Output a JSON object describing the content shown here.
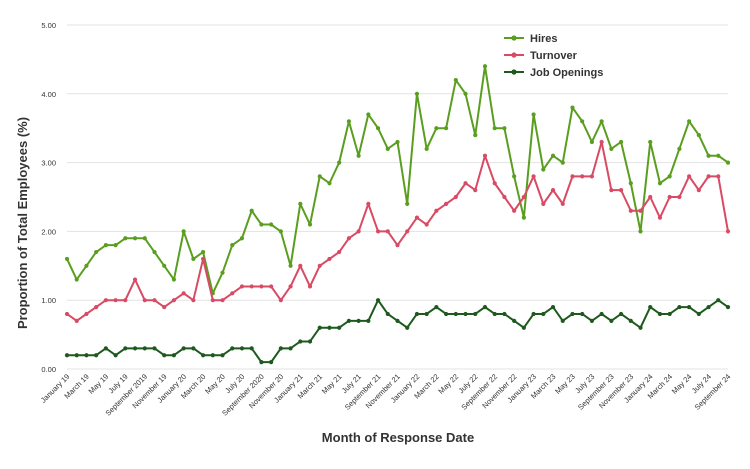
{
  "chart_data": {
    "type": "line",
    "title": "",
    "xlabel": "Month of Response Date",
    "ylabel": "Proportion of Total Employees (%)",
    "ylim": [
      0,
      5
    ],
    "yticks": [
      "0.00",
      "1.00",
      "2.00",
      "3.00",
      "4.00",
      "5.00"
    ],
    "grid": "horizontal",
    "legend_position": "top-right",
    "categories": [
      "Jan 2019",
      "Feb 2019",
      "Mar 2019",
      "Apr 2019",
      "May 2019",
      "Jun 2019",
      "Jul 2019",
      "Aug 2019",
      "Sep 2019",
      "Oct 2019",
      "Nov 2019",
      "Dec 2019",
      "Jan 2020",
      "Feb 2020",
      "Mar 2020",
      "Apr 2020",
      "May 2020",
      "Jun 2020",
      "Jul 2020",
      "Aug 2020",
      "Sep 2020",
      "Oct 2020",
      "Nov 2020",
      "Dec 2020",
      "Jan 2021",
      "Feb 2021",
      "Mar 2021",
      "Apr 2021",
      "May 2021",
      "Jun 2021",
      "Jul 2021",
      "Aug 2021",
      "Sep 2021",
      "Oct 2021",
      "Nov 2021",
      "Dec 2021",
      "Jan 2022",
      "Feb 2022",
      "Mar 2022",
      "Apr 2022",
      "May 2022",
      "Jun 2022",
      "Jul 2022",
      "Aug 2022",
      "Sep 2022",
      "Oct 2022",
      "Nov 2022",
      "Dec 2022",
      "Jan 2023",
      "Feb 2023",
      "Mar 2023",
      "Apr 2023",
      "May 2023",
      "Jun 2023",
      "Jul 2023",
      "Aug 2023",
      "Sep 2023",
      "Oct 2023",
      "Nov 2023",
      "Dec 2023",
      "Jan 2024",
      "Feb 2024",
      "Mar 2024",
      "Apr 2024",
      "May 2024",
      "Jun 2024",
      "Jul 2024",
      "Aug 2024",
      "Sep 2024"
    ],
    "tick_labels": [
      "January 19",
      "March 19",
      "May 19",
      "July 19",
      "September 2019",
      "November 19",
      "January 20",
      "March 20",
      "May 20",
      "July 20",
      "September 2020",
      "November 20",
      "January 21",
      "March 21",
      "May 21",
      "July 21",
      "September 21",
      "November 21",
      "January 22",
      "March 22",
      "May 22",
      "July 22",
      "September 22",
      "November 22",
      "January 23",
      "March 23",
      "May 23",
      "July 23",
      "September 23",
      "November 23",
      "January 24",
      "March 24",
      "May 24",
      "July 24",
      "September 24"
    ],
    "series": [
      {
        "name": "Hires",
        "color": "#5a9e1f",
        "values": [
          1.6,
          1.3,
          1.5,
          1.7,
          1.8,
          1.8,
          1.9,
          1.9,
          1.9,
          1.7,
          1.5,
          1.3,
          2.0,
          1.6,
          1.7,
          1.1,
          1.4,
          1.8,
          1.9,
          2.3,
          2.1,
          2.1,
          2.0,
          1.5,
          2.4,
          2.1,
          2.8,
          2.7,
          3.0,
          3.6,
          3.1,
          3.7,
          3.5,
          3.2,
          3.3,
          2.4,
          4.0,
          3.2,
          3.5,
          3.5,
          4.2,
          4.0,
          3.4,
          4.4,
          3.5,
          3.5,
          2.8,
          2.2,
          3.7,
          2.9,
          3.1,
          3.0,
          3.8,
          3.6,
          3.3,
          3.6,
          3.2,
          3.3,
          2.7,
          2.0,
          3.3,
          2.7,
          2.8,
          3.2,
          3.6,
          3.4,
          3.1,
          3.1,
          3.0
        ]
      },
      {
        "name": "Turnover",
        "color": "#d94a64",
        "values": [
          0.8,
          0.7,
          0.8,
          0.9,
          1.0,
          1.0,
          1.0,
          1.3,
          1.0,
          1.0,
          0.9,
          1.0,
          1.1,
          1.0,
          1.6,
          1.0,
          1.0,
          1.1,
          1.2,
          1.2,
          1.2,
          1.2,
          1.0,
          1.2,
          1.5,
          1.2,
          1.5,
          1.6,
          1.7,
          1.9,
          2.0,
          2.4,
          2.0,
          2.0,
          1.8,
          2.0,
          2.2,
          2.1,
          2.3,
          2.4,
          2.5,
          2.7,
          2.6,
          3.1,
          2.7,
          2.5,
          2.3,
          2.5,
          2.8,
          2.4,
          2.6,
          2.4,
          2.8,
          2.8,
          2.8,
          3.3,
          2.6,
          2.6,
          2.3,
          2.3,
          2.5,
          2.2,
          2.5,
          2.5,
          2.8,
          2.6,
          2.8,
          2.8,
          2.0
        ]
      },
      {
        "name": "Job Openings",
        "color": "#1e5a1e",
        "values": [
          0.2,
          0.2,
          0.2,
          0.2,
          0.3,
          0.2,
          0.3,
          0.3,
          0.3,
          0.3,
          0.2,
          0.2,
          0.3,
          0.3,
          0.2,
          0.2,
          0.2,
          0.3,
          0.3,
          0.3,
          0.1,
          0.1,
          0.3,
          0.3,
          0.4,
          0.4,
          0.6,
          0.6,
          0.6,
          0.7,
          0.7,
          0.7,
          1.0,
          0.8,
          0.7,
          0.6,
          0.8,
          0.8,
          0.9,
          0.8,
          0.8,
          0.8,
          0.8,
          0.9,
          0.8,
          0.8,
          0.7,
          0.6,
          0.8,
          0.8,
          0.9,
          0.7,
          0.8,
          0.8,
          0.7,
          0.8,
          0.7,
          0.8,
          0.7,
          0.6,
          0.9,
          0.8,
          0.8,
          0.9,
          0.9,
          0.8,
          0.9,
          1.0,
          0.9
        ]
      }
    ]
  }
}
